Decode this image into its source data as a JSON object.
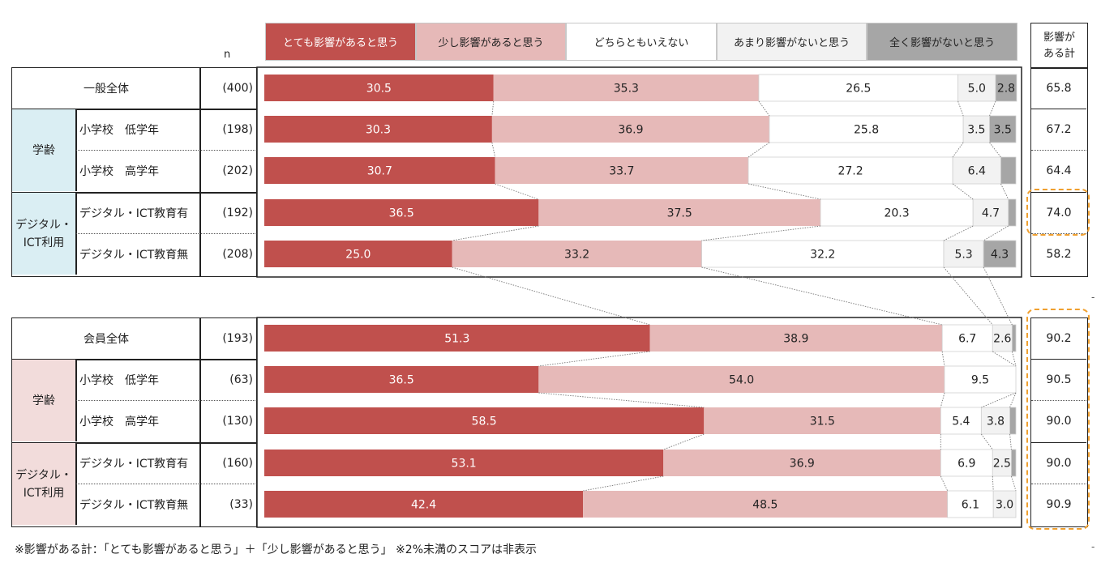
{
  "legend": [
    {
      "label": "とても影響があると思う",
      "color": "#c0504d",
      "text_color": "#ffffff"
    },
    {
      "label": "少し影響があると思う",
      "color": "#e6b9b8",
      "text_color": "#222222"
    },
    {
      "label": "どちらともいえない",
      "color": "#ffffff",
      "text_color": "#222222"
    },
    {
      "label": "あまり影響がないと思う",
      "color": "#f2f2f2",
      "text_color": "#222222"
    },
    {
      "label": "全く影響がないと思う",
      "color": "#a6a6a6",
      "text_color": "#222222"
    }
  ],
  "n_header": "n",
  "total_header": "影響が\nある計",
  "total_header_line1": "影響が",
  "total_header_line2": "ある計",
  "groups": [
    {
      "overall_label": "一般全体",
      "overall_n": "(400)",
      "overall_total": "65.8",
      "subgroups": [
        {
          "label": "学齢",
          "bg": "#daeef3",
          "rows": [
            {
              "label": "小学校　低学年",
              "n": "(198)",
              "total": "67.2"
            },
            {
              "label": "小学校　高学年",
              "n": "(202)",
              "total": "64.4"
            }
          ]
        },
        {
          "label": "デジタル・\nICT利用",
          "label_line1": "デジタル・",
          "label_line2": "ICT利用",
          "bg": "#daeef3",
          "rows": [
            {
              "label": "デジタル・ICT教育有",
              "n": "(192)",
              "total": "74.0"
            },
            {
              "label": "デジタル・ICT教育無",
              "n": "(208)",
              "total": "58.2"
            }
          ]
        }
      ]
    },
    {
      "overall_label": "会員全体",
      "overall_n": "(193)",
      "overall_total": "90.2",
      "subgroups": [
        {
          "label": "学齢",
          "bg": "#f2dcdb",
          "rows": [
            {
              "label": "小学校　低学年",
              "n": "(63)",
              "total": "90.5"
            },
            {
              "label": "小学校　高学年",
              "n": "(130)",
              "total": "90.0"
            }
          ]
        },
        {
          "label": "デジタル・\nICT利用",
          "label_line1": "デジタル・",
          "label_line2": "ICT利用",
          "bg": "#f2dcdb",
          "rows": [
            {
              "label": "デジタル・ICT教育有",
              "n": "(160)",
              "total": "90.0"
            },
            {
              "label": "デジタル・ICT教育無",
              "n": "(33)",
              "total": "90.9"
            }
          ]
        }
      ]
    }
  ],
  "chart_data": {
    "type": "bar",
    "orientation": "horizontal",
    "stacked": true,
    "percent": true,
    "xlim": [
      0,
      100
    ],
    "series": [
      {
        "name": "とても影響があると思う",
        "color": "#c0504d"
      },
      {
        "name": "少し影響があると思う",
        "color": "#e6b9b8"
      },
      {
        "name": "どちらともいえない",
        "color": "#ffffff"
      },
      {
        "name": "あまり影響がないと思う",
        "color": "#f2f2f2"
      },
      {
        "name": "全く影響がないと思う",
        "color": "#a6a6a6"
      }
    ],
    "categories": [
      "一般全体",
      "一般 学齢 小学校　低学年",
      "一般 学齢 小学校　高学年",
      "一般 デジタル・ICT教育有",
      "一般 デジタル・ICT教育無",
      "会員全体",
      "会員 学齢 小学校　低学年",
      "会員 学齢 小学校　高学年",
      "会員 デジタル・ICT教育有",
      "会員 デジタル・ICT教育無"
    ],
    "rows": [
      {
        "values": [
          30.5,
          35.3,
          26.5,
          5.0,
          2.8
        ],
        "labels": [
          "30.5",
          "35.3",
          "26.5",
          "5.0",
          "2.8"
        ]
      },
      {
        "values": [
          30.3,
          36.9,
          25.8,
          3.5,
          3.5
        ],
        "labels": [
          "30.3",
          "36.9",
          "25.8",
          "3.5",
          "3.5"
        ]
      },
      {
        "values": [
          30.7,
          33.7,
          27.2,
          6.4,
          2.0
        ],
        "labels": [
          "30.7",
          "33.7",
          "27.2",
          "6.4",
          ""
        ]
      },
      {
        "values": [
          36.5,
          37.5,
          20.3,
          4.7,
          1.0
        ],
        "labels": [
          "36.5",
          "37.5",
          "20.3",
          "4.7",
          ""
        ]
      },
      {
        "values": [
          25.0,
          33.2,
          32.2,
          5.3,
          4.3
        ],
        "labels": [
          "25.0",
          "33.2",
          "32.2",
          "5.3",
          "4.3"
        ]
      },
      {
        "values": [
          51.3,
          38.9,
          6.7,
          2.6,
          0.5
        ],
        "labels": [
          "51.3",
          "38.9",
          "6.7",
          "2.6",
          ""
        ]
      },
      {
        "values": [
          36.5,
          54.0,
          9.5,
          0.0,
          0.0
        ],
        "labels": [
          "36.5",
          "54.0",
          "9.5",
          "",
          ""
        ]
      },
      {
        "values": [
          58.5,
          31.5,
          5.4,
          3.8,
          0.8
        ],
        "labels": [
          "58.5",
          "31.5",
          "5.4",
          "3.8",
          ""
        ]
      },
      {
        "values": [
          53.1,
          36.9,
          6.9,
          2.5,
          0.6
        ],
        "labels": [
          "53.1",
          "36.9",
          "6.9",
          "2.5",
          ""
        ]
      },
      {
        "values": [
          42.4,
          48.5,
          6.1,
          3.0,
          0.0
        ],
        "labels": [
          "42.4",
          "48.5",
          "6.1",
          "3.0",
          ""
        ]
      }
    ]
  },
  "footnote": "※影響がある計：「とても影響があると思う」＋「少し影響があると思う」 ※2%未満のスコアは非表示"
}
